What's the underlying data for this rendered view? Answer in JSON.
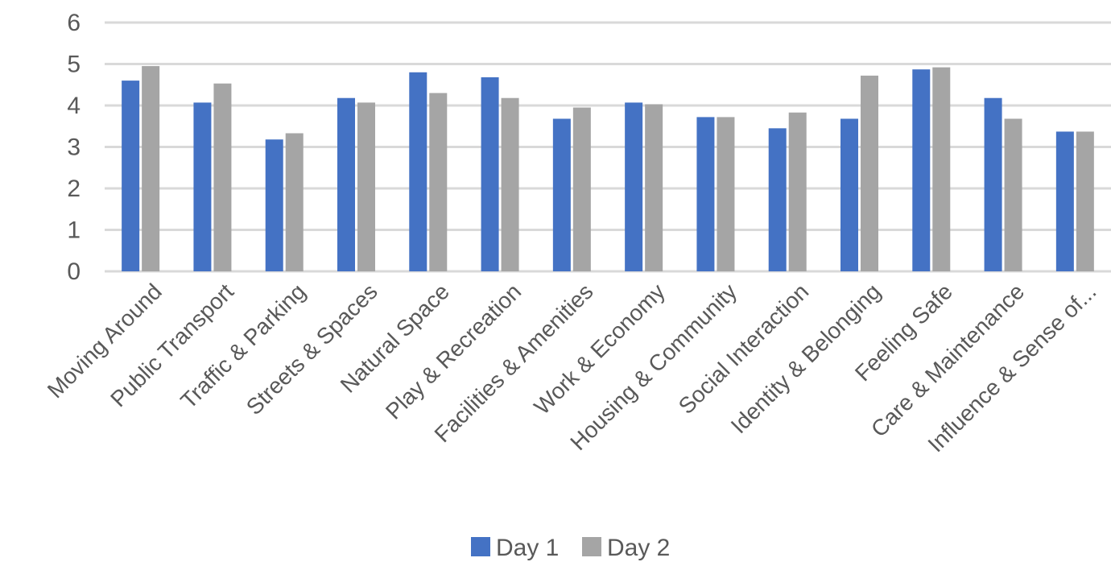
{
  "chart_data": {
    "type": "bar",
    "categories": [
      "Moving Around",
      "Public Transport",
      "Traffic & Parking",
      "Streets & Spaces",
      "Natural Space",
      "Play & Recreation",
      "Facilities & Amenities",
      "Work & Economy",
      "Housing & Community",
      "Social Interaction",
      "Identity & Belonging",
      "Feeling Safe",
      "Care & Maintenance",
      "Influence & Sense of..."
    ],
    "series": [
      {
        "name": "Day 1",
        "color": "#4472C4",
        "values": [
          4.6,
          4.07,
          3.18,
          4.18,
          4.8,
          4.68,
          3.68,
          4.07,
          3.72,
          3.45,
          3.68,
          4.87,
          4.18,
          3.37
        ]
      },
      {
        "name": "Day 2",
        "color": "#A5A5A5",
        "values": [
          4.95,
          4.53,
          3.33,
          4.07,
          4.3,
          4.18,
          3.95,
          4.03,
          3.72,
          3.83,
          4.72,
          4.92,
          3.68,
          3.37
        ]
      }
    ],
    "y_ticks": [
      "0",
      "1",
      "2",
      "3",
      "4",
      "5",
      "6"
    ],
    "ylim": [
      0,
      6
    ],
    "grid": true,
    "legend_position": "bottom",
    "title": "",
    "xlabel": "",
    "ylabel": ""
  }
}
